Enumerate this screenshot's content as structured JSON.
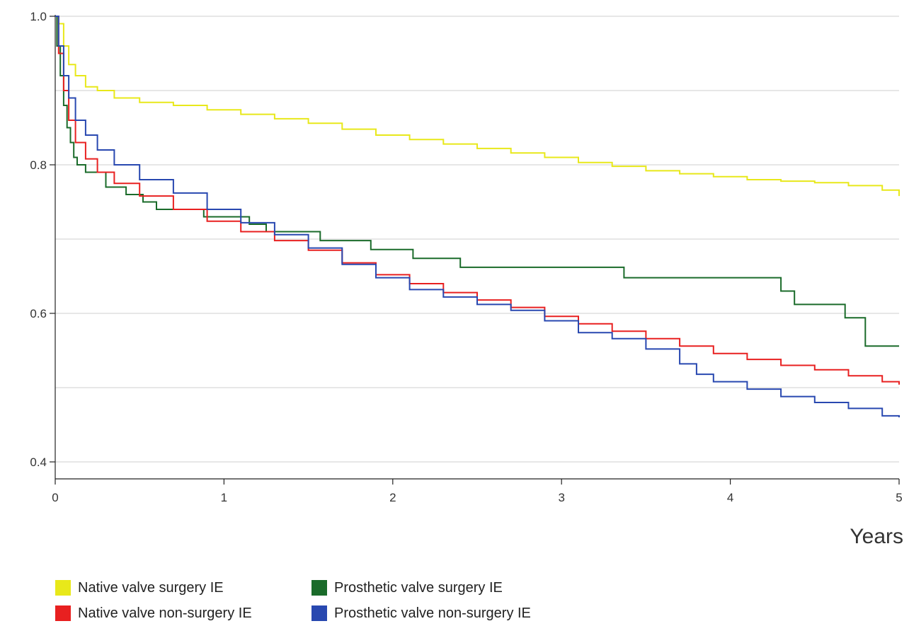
{
  "chart_data": {
    "type": "line",
    "xlabel": "Years",
    "ylabel": "",
    "xlim": [
      0,
      5
    ],
    "ylim": [
      0.38,
      1.0
    ],
    "x_ticks": [
      0,
      1,
      2,
      3,
      4,
      5
    ],
    "x_tick_labels": [
      "0",
      "1",
      "2",
      "3",
      "4",
      "5"
    ],
    "y_ticks": [
      0.4,
      0.6,
      0.8,
      1.0
    ],
    "y_tick_labels": [
      "0.4",
      "0.6",
      "0.8",
      "1.0"
    ],
    "y_gridlines": [
      0.4,
      0.5,
      0.6,
      0.7,
      0.8,
      0.9,
      1.0
    ],
    "grid": true,
    "legend_position": "bottom",
    "series": [
      {
        "name": "Native valve surgery IE",
        "color": "#e8e81a",
        "x": [
          0,
          0.02,
          0.05,
          0.08,
          0.12,
          0.18,
          0.25,
          0.35,
          0.5,
          0.7,
          0.9,
          1.1,
          1.3,
          1.5,
          1.7,
          1.9,
          2.1,
          2.3,
          2.5,
          2.7,
          2.9,
          3.1,
          3.3,
          3.5,
          3.7,
          3.9,
          4.1,
          4.3,
          4.5,
          4.7,
          4.9,
          5.0
        ],
        "y": [
          1.0,
          0.99,
          0.96,
          0.935,
          0.92,
          0.905,
          0.9,
          0.89,
          0.884,
          0.88,
          0.874,
          0.868,
          0.862,
          0.856,
          0.848,
          0.84,
          0.834,
          0.828,
          0.822,
          0.816,
          0.81,
          0.803,
          0.798,
          0.792,
          0.788,
          0.784,
          0.78,
          0.778,
          0.776,
          0.772,
          0.766,
          0.758
        ]
      },
      {
        "name": "Prosthetic valve surgery IE",
        "color": "#1a6b2a",
        "x": [
          0,
          0.01,
          0.03,
          0.05,
          0.07,
          0.09,
          0.11,
          0.13,
          0.18,
          0.3,
          0.42,
          0.52,
          0.6,
          0.88,
          1.15,
          1.25,
          1.57,
          1.87,
          2.12,
          2.4,
          3.12,
          3.37,
          4.08,
          4.3,
          4.38,
          4.68,
          4.8,
          5.0
        ],
        "y": [
          1.0,
          0.96,
          0.92,
          0.88,
          0.85,
          0.83,
          0.81,
          0.8,
          0.79,
          0.77,
          0.76,
          0.75,
          0.74,
          0.73,
          0.72,
          0.71,
          0.698,
          0.686,
          0.674,
          0.662,
          0.662,
          0.648,
          0.648,
          0.63,
          0.612,
          0.594,
          0.556,
          0.556
        ]
      },
      {
        "name": "Native valve non-surgery IE",
        "color": "#e82020",
        "x": [
          0,
          0.02,
          0.05,
          0.08,
          0.12,
          0.18,
          0.25,
          0.35,
          0.5,
          0.7,
          0.9,
          1.1,
          1.3,
          1.5,
          1.7,
          1.9,
          2.1,
          2.3,
          2.5,
          2.7,
          2.9,
          3.1,
          3.3,
          3.5,
          3.7,
          3.9,
          4.1,
          4.3,
          4.5,
          4.7,
          4.9,
          5.0
        ],
        "y": [
          1.0,
          0.95,
          0.9,
          0.86,
          0.83,
          0.808,
          0.79,
          0.775,
          0.758,
          0.74,
          0.724,
          0.71,
          0.698,
          0.685,
          0.668,
          0.652,
          0.64,
          0.628,
          0.618,
          0.608,
          0.596,
          0.586,
          0.576,
          0.566,
          0.556,
          0.546,
          0.538,
          0.53,
          0.524,
          0.516,
          0.508,
          0.504
        ]
      },
      {
        "name": "Prosthetic valve non-surgery IE",
        "color": "#2848b0",
        "x": [
          0,
          0.02,
          0.05,
          0.08,
          0.12,
          0.18,
          0.25,
          0.35,
          0.5,
          0.7,
          0.9,
          1.1,
          1.3,
          1.5,
          1.7,
          1.9,
          2.1,
          2.3,
          2.5,
          2.7,
          2.9,
          3.1,
          3.3,
          3.5,
          3.7,
          3.8,
          3.9,
          4.1,
          4.3,
          4.5,
          4.7,
          4.9,
          5.0
        ],
        "y": [
          1.0,
          0.96,
          0.92,
          0.89,
          0.86,
          0.84,
          0.82,
          0.8,
          0.78,
          0.762,
          0.74,
          0.722,
          0.706,
          0.688,
          0.666,
          0.648,
          0.632,
          0.622,
          0.612,
          0.604,
          0.59,
          0.574,
          0.566,
          0.552,
          0.532,
          0.518,
          0.508,
          0.498,
          0.488,
          0.48,
          0.472,
          0.462,
          0.46
        ]
      }
    ]
  }
}
